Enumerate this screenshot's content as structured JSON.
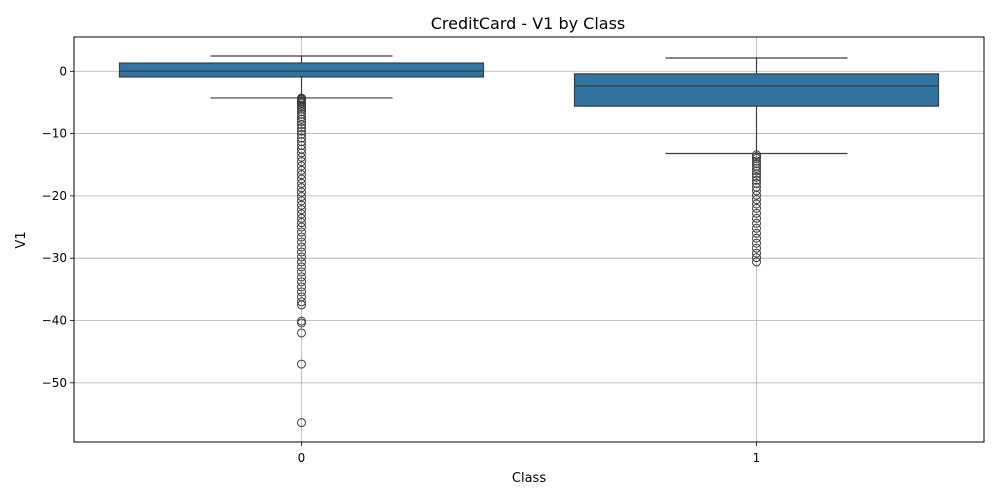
{
  "chart_data": {
    "type": "box",
    "title": "CreditCard - V1 by Class",
    "xlabel": "Class",
    "ylabel": "V1",
    "categories": [
      "0",
      "1"
    ],
    "ylim": [
      -59.5,
      5.5
    ],
    "yticks": [
      0,
      -10,
      -20,
      -30,
      -40,
      -50
    ],
    "ytick_labels": [
      "0",
      "−10",
      "−20",
      "−30",
      "−40",
      "−50"
    ],
    "grid": true,
    "box_color": "#3274a1",
    "boxes": [
      {
        "category": "0",
        "q1": -0.92,
        "median": 0.02,
        "q3": 1.32,
        "whisker_low": -4.28,
        "whisker_high": 2.45,
        "outliers": [
          -4.3,
          -4.4,
          -4.5,
          -4.6,
          -4.8,
          -5.0,
          -5.2,
          -5.5,
          -5.8,
          -6.1,
          -6.5,
          -6.9,
          -7.3,
          -7.7,
          -8.1,
          -8.6,
          -9.1,
          -9.6,
          -10.1,
          -10.7,
          -11.3,
          -11.9,
          -12.5,
          -13.1,
          -13.8,
          -14.5,
          -15.2,
          -15.9,
          -16.6,
          -17.3,
          -18.0,
          -18.7,
          -19.4,
          -20.1,
          -20.8,
          -21.5,
          -22.2,
          -22.9,
          -23.6,
          -24.3,
          -25.0,
          -25.8,
          -26.6,
          -27.4,
          -28.2,
          -29.0,
          -29.8,
          -30.6,
          -31.4,
          -32.2,
          -33.0,
          -33.8,
          -34.6,
          -35.4,
          -36.2,
          -37.0,
          -37.5,
          -40.1,
          -40.4,
          -42.0,
          -47.0,
          -56.4
        ]
      },
      {
        "category": "1",
        "q1": -5.6,
        "median": -2.34,
        "q3": -0.42,
        "whisker_low": -13.2,
        "whisker_high": 2.13,
        "outliers": [
          -13.4,
          -13.7,
          -14.0,
          -14.4,
          -14.8,
          -15.2,
          -15.6,
          -16.0,
          -16.5,
          -17.0,
          -17.5,
          -18.0,
          -18.6,
          -19.2,
          -19.9,
          -20.6,
          -21.3,
          -22.0,
          -22.8,
          -23.6,
          -24.4,
          -25.2,
          -26.0,
          -26.8,
          -27.6,
          -28.4,
          -29.2,
          -29.9,
          -30.6
        ]
      }
    ]
  }
}
